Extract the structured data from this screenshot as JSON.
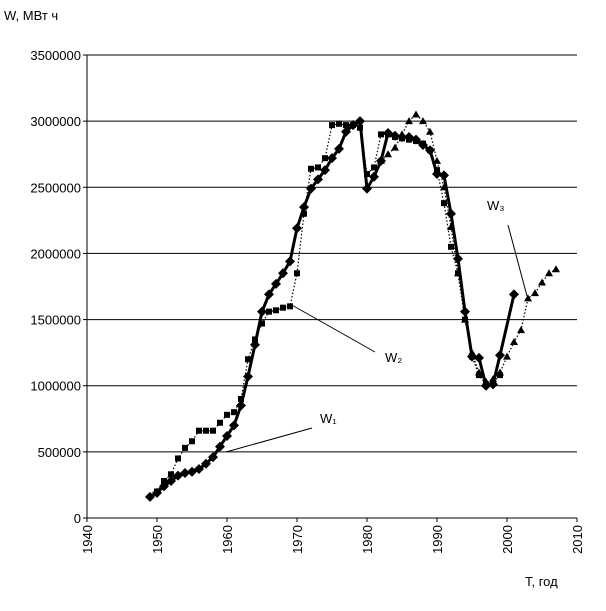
{
  "chart_data": {
    "type": "line",
    "ylabel": "W, МВт ч",
    "xlabel": "T, год",
    "xlim": [
      1940,
      2010
    ],
    "xticks": [
      1940,
      1950,
      1960,
      1970,
      1980,
      1990,
      2000,
      2010
    ],
    "ylim": [
      0,
      3500000
    ],
    "yticks": [
      0,
      500000,
      1000000,
      1500000,
      2000000,
      2500000,
      3000000,
      3500000
    ],
    "grid": true,
    "series": [
      {
        "name": "W₁",
        "color": "#000000",
        "marker": "diamond",
        "dash": "solid",
        "x": [
          1949,
          1950,
          1951,
          1952,
          1953,
          1954,
          1955,
          1956,
          1957,
          1958,
          1959,
          1960,
          1961,
          1962,
          1963,
          1964,
          1965,
          1966,
          1967,
          1968,
          1969,
          1970,
          1971,
          1972,
          1973,
          1974,
          1975,
          1976,
          1977,
          1978,
          1979,
          1980,
          1981,
          1982,
          1983,
          1984,
          1985,
          1986,
          1987,
          1988,
          1989,
          1990,
          1991,
          1992,
          1993,
          1994,
          1995,
          1996,
          1997,
          1998,
          1999,
          2001
        ],
        "values": [
          160000,
          190000,
          240000,
          280000,
          320000,
          340000,
          350000,
          370000,
          410000,
          460000,
          540000,
          620000,
          700000,
          850000,
          1070000,
          1310000,
          1560000,
          1690000,
          1770000,
          1850000,
          1940000,
          2190000,
          2350000,
          2490000,
          2560000,
          2630000,
          2720000,
          2790000,
          2920000,
          2970000,
          3000000,
          2490000,
          2580000,
          2700000,
          2910000,
          2890000,
          2880000,
          2880000,
          2860000,
          2820000,
          2780000,
          2600000,
          2590000,
          2300000,
          1960000,
          1560000,
          1220000,
          1210000,
          1000000,
          1010000,
          1230000,
          1690000
        ]
      },
      {
        "name": "W₂",
        "color": "#000000",
        "marker": "square",
        "dash": "dotted",
        "x": [
          1950,
          1951,
          1952,
          1953,
          1954,
          1955,
          1956,
          1957,
          1958,
          1959,
          1960,
          1961,
          1962,
          1963,
          1964,
          1965,
          1966,
          1967,
          1968,
          1969,
          1970,
          1971,
          1972,
          1973,
          1974,
          1975,
          1976,
          1977,
          1978,
          1979,
          1980,
          1981,
          1982,
          1983,
          1984,
          1985,
          1986,
          1987,
          1988,
          1989,
          1990,
          1991,
          1992,
          1993,
          1994,
          1995,
          1996,
          1997,
          1998,
          1999
        ],
        "values": [
          200000,
          280000,
          330000,
          450000,
          530000,
          580000,
          660000,
          660000,
          660000,
          720000,
          780000,
          800000,
          900000,
          1200000,
          1350000,
          1470000,
          1560000,
          1570000,
          1590000,
          1600000,
          1850000,
          2300000,
          2640000,
          2650000,
          2720000,
          2970000,
          2980000,
          2970000,
          2970000,
          2950000,
          2600000,
          2650000,
          2900000,
          2900000,
          2880000,
          2870000,
          2860000,
          2850000,
          2830000,
          2780000,
          2630000,
          2380000,
          2050000,
          1850000,
          1500000,
          1220000,
          1080000,
          1010000,
          1020000,
          1080000
        ]
      },
      {
        "name": "W₃",
        "color": "#000000",
        "marker": "triangle",
        "dash": "dotted",
        "x": [
          1982,
          1983,
          1984,
          1985,
          1986,
          1987,
          1988,
          1989,
          1990,
          1991,
          1992,
          1993,
          1994,
          1995,
          1996,
          1997,
          1998,
          1999,
          2000,
          2001,
          2002,
          2003,
          2004,
          2005,
          2006,
          2007
        ],
        "values": [
          2700000,
          2750000,
          2800000,
          2900000,
          3000000,
          3050000,
          3000000,
          2920000,
          2700000,
          2500000,
          2200000,
          1850000,
          1500000,
          1250000,
          1100000,
          1030000,
          1050000,
          1100000,
          1220000,
          1330000,
          1420000,
          1660000,
          1700000,
          1780000,
          1850000,
          1880000
        ]
      }
    ]
  }
}
